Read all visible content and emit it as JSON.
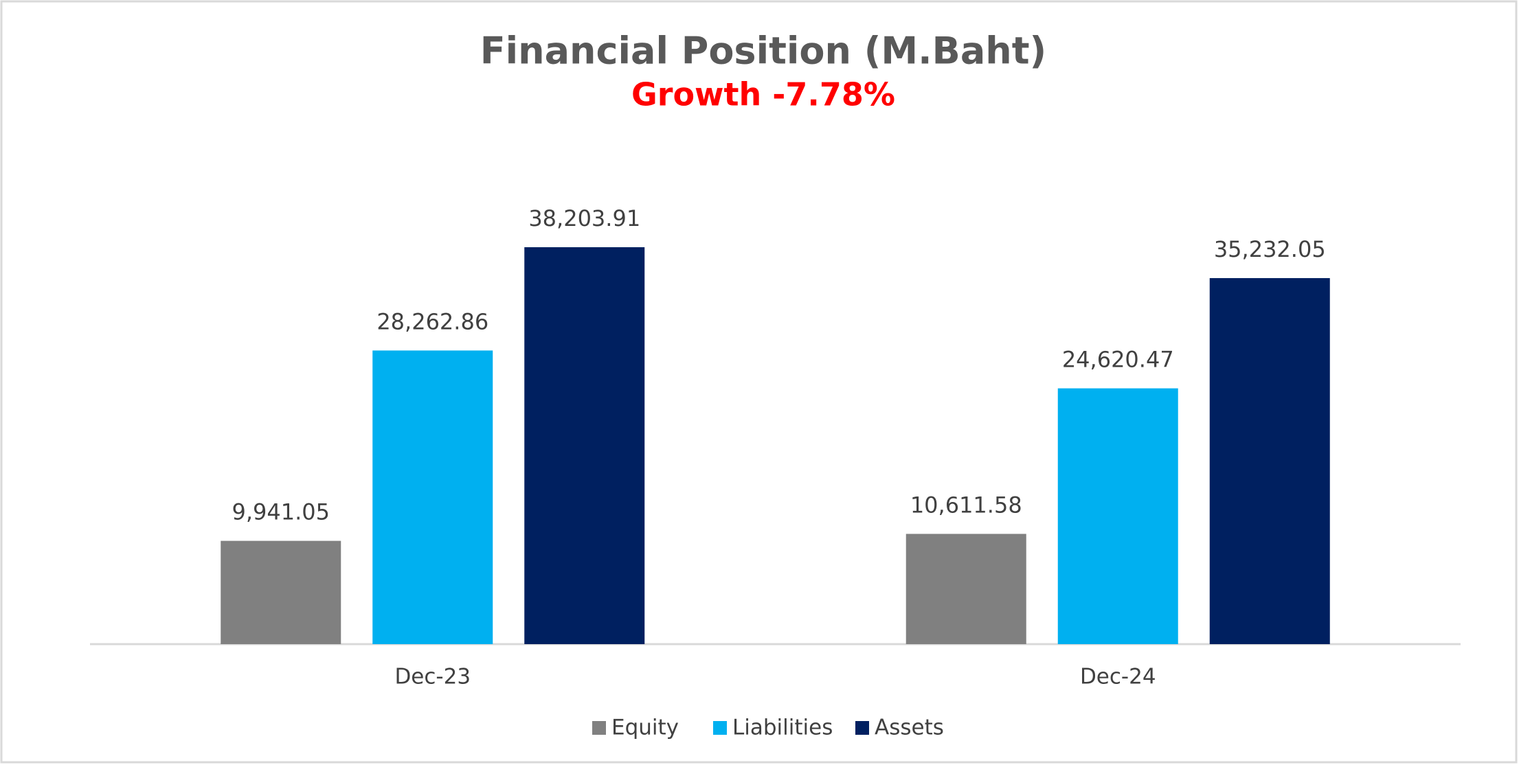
{
  "chart_data": {
    "type": "bar",
    "title": "Financial Position (M.Baht)",
    "subtitle": "Growth -7.78%",
    "categories": [
      "Dec-23",
      "Dec-24"
    ],
    "series": [
      {
        "name": "Equity",
        "color": "#808080",
        "values": [
          9941.05,
          10611.58
        ],
        "value_labels": [
          "9,941.05",
          "10,611.58"
        ]
      },
      {
        "name": "Liabilities",
        "color": "#00b0f0",
        "values": [
          28262.86,
          24620.47
        ],
        "value_labels": [
          "28,262.86",
          "24,620.47"
        ]
      },
      {
        "name": "Assets",
        "color": "#002060",
        "values": [
          38203.91,
          35232.05
        ],
        "value_labels": [
          "38,203.91",
          "35,232.05"
        ]
      }
    ],
    "legend": "bottom"
  }
}
